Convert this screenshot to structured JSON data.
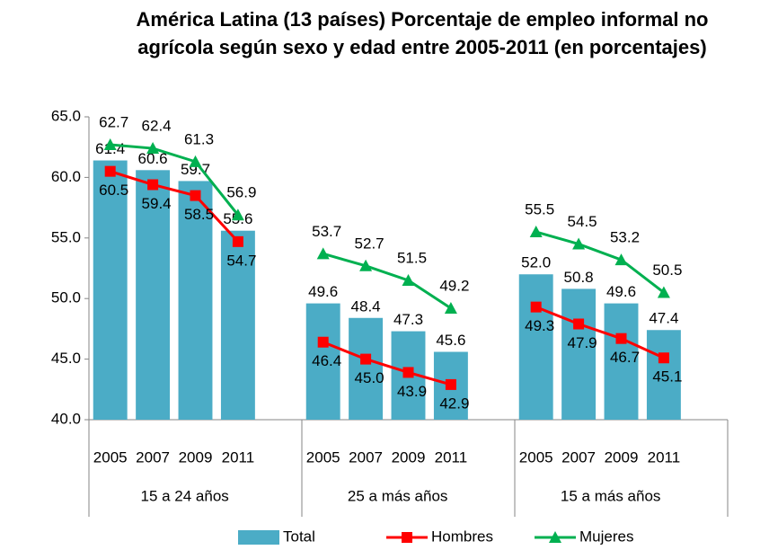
{
  "chart_data": {
    "type": "bar_line",
    "title": "América Latina (13 países) Porcentaje de empleo informal no agrícola según sexo y edad entre 2005-2011 (en porcentajes)",
    "groups": [
      "15 a 24 años",
      "25 a más años",
      "15 a más años"
    ],
    "categories": [
      [
        "2005",
        "2007",
        "2009",
        "2011"
      ],
      [
        "2005",
        "2007",
        "2009",
        "2011"
      ],
      [
        "2005",
        "2007",
        "2009",
        "2011"
      ]
    ],
    "series": [
      {
        "name": "Total",
        "kind": "bar",
        "color": "#4bacc6",
        "values": [
          [
            61.4,
            60.6,
            59.7,
            55.6
          ],
          [
            49.6,
            48.4,
            47.3,
            45.6
          ],
          [
            52.0,
            50.8,
            49.6,
            47.4
          ]
        ],
        "value_labels": [
          [
            "61.4",
            "60.6",
            "59.7",
            "55.6"
          ],
          [
            "49.6",
            "48.4",
            "47.3",
            "45.6"
          ],
          [
            "52.0",
            "50.8",
            "49.6",
            "47.4"
          ]
        ]
      },
      {
        "name": "Hombres",
        "kind": "line",
        "marker": "square",
        "color": "#ff0000",
        "values": [
          [
            60.5,
            59.4,
            58.5,
            54.7
          ],
          [
            46.4,
            45.0,
            43.9,
            42.9
          ],
          [
            49.3,
            47.9,
            46.7,
            45.1
          ]
        ],
        "value_labels": [
          [
            "60.5",
            "59.4",
            "58.5",
            "54.7"
          ],
          [
            "46.4",
            "45.0",
            "43.9",
            "42.9"
          ],
          [
            "49.3",
            "47.9",
            "46.7",
            "45.1"
          ]
        ]
      },
      {
        "name": "Mujeres",
        "kind": "line",
        "marker": "triangle",
        "color": "#00b050",
        "values": [
          [
            62.7,
            62.4,
            61.3,
            56.9
          ],
          [
            53.7,
            52.7,
            51.5,
            49.2
          ],
          [
            55.5,
            54.5,
            53.2,
            50.5
          ]
        ],
        "value_labels": [
          [
            "62.7",
            "62.4",
            "61.3",
            "56.9"
          ],
          [
            "53.7",
            "52.7",
            "51.5",
            "49.2"
          ],
          [
            "55.5",
            "54.5",
            "53.2",
            "50.5"
          ]
        ]
      }
    ],
    "ylim": [
      40,
      65
    ],
    "yticks": [
      {
        "value": 40,
        "label": "40.0"
      },
      {
        "value": 45,
        "label": "45.0"
      },
      {
        "value": 50,
        "label": "50.0"
      },
      {
        "value": 55,
        "label": "55.0"
      },
      {
        "value": 60,
        "label": "60.0"
      },
      {
        "value": 65,
        "label": "65.0"
      }
    ],
    "grid": false,
    "legend": "bottom"
  }
}
